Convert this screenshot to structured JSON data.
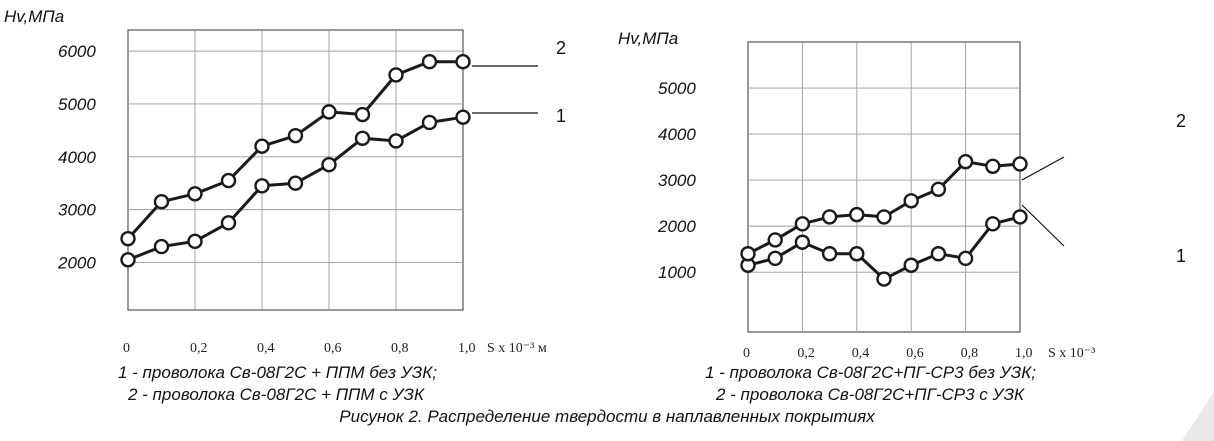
{
  "chart_data": [
    {
      "type": "line",
      "ylabel": "Hv,МПа",
      "xlabel": "S х 10⁻³ м",
      "x": [
        0,
        0.1,
        0.2,
        0.3,
        0.4,
        0.5,
        0.6,
        0.7,
        0.8,
        0.9,
        1.0
      ],
      "x_ticks": [
        "0",
        "0,2",
        "0,4",
        "0,6",
        "0,8",
        "1,0"
      ],
      "y_ticks": [
        "2000",
        "3000",
        "4000",
        "5000",
        "6000"
      ],
      "ylim": [
        1100,
        6400
      ],
      "grid": true,
      "series": [
        {
          "name": "1",
          "values": [
            2050,
            2300,
            2400,
            2750,
            3450,
            3500,
            3850,
            4350,
            4300,
            4650,
            4750
          ]
        },
        {
          "name": "2",
          "values": [
            2450,
            3150,
            3300,
            3550,
            4200,
            4400,
            4850,
            4800,
            5550,
            5800,
            5800
          ]
        }
      ]
    },
    {
      "type": "line",
      "ylabel": "Hv,МПа",
      "xlabel": "S х 10⁻³",
      "x": [
        0,
        0.1,
        0.2,
        0.3,
        0.4,
        0.5,
        0.6,
        0.7,
        0.8,
        0.9,
        1.0
      ],
      "x_ticks": [
        "0",
        "0,2",
        "0,4",
        "0,6",
        "0,8",
        "1,0"
      ],
      "y_ticks": [
        "1000",
        "2000",
        "3000",
        "4000",
        "5000"
      ],
      "ylim": [
        -300,
        6000
      ],
      "grid": true,
      "series": [
        {
          "name": "1",
          "values": [
            1150,
            1300,
            1650,
            1400,
            1400,
            850,
            1150,
            1400,
            1300,
            2050,
            2200
          ]
        },
        {
          "name": "2",
          "values": [
            1400,
            1700,
            2050,
            2200,
            2250,
            2200,
            2550,
            2800,
            3400,
            3300,
            3350
          ]
        }
      ]
    }
  ],
  "captions": {
    "left_1": "1 - проволока Св-08Г2С + ППМ без УЗК;",
    "left_2": "2 - проволока Св-08Г2С + ППМ с УЗК",
    "right_1": "1 - проволока Св-08Г2С+ПГ-СР3 без УЗК;",
    "right_2": "2 - проволока Св-08Г2С+ПГ-СР3 с УЗК",
    "figure": "Рисунок 2. Распределение твердости в наплавленных покрытиях"
  },
  "colors": {
    "line": "#1a1a1a",
    "grid": "#9a9a9a",
    "frame": "#555555",
    "marker_fill": "#ffffff"
  }
}
